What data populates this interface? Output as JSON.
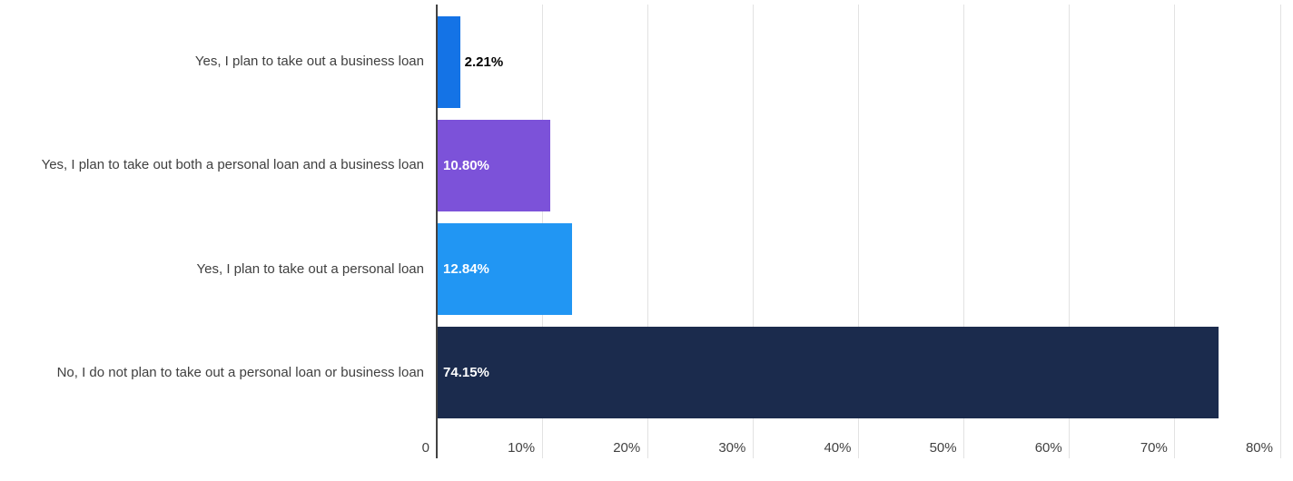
{
  "chart_data": {
    "type": "bar",
    "orientation": "horizontal",
    "title": "",
    "xlabel": "",
    "ylabel": "",
    "categories": [
      "Yes, I plan to take out a business loan",
      "Yes, I plan to take out both a personal loan and a business loan",
      "Yes, I plan to take out a personal loan",
      "No, I do not plan to take out a personal loan or business loan"
    ],
    "values": [
      2.21,
      10.8,
      12.84,
      74.15
    ],
    "value_labels": [
      "2.21%",
      "10.80%",
      "12.84%",
      "74.15%"
    ],
    "bar_colors": [
      "#1473e6",
      "#7c52d9",
      "#2196f3",
      "#1b2b4d"
    ],
    "value_label_colors": [
      "#000000",
      "#ffffff",
      "#ffffff",
      "#ffffff"
    ],
    "value_label_inside": [
      false,
      true,
      true,
      true
    ],
    "xlim": [
      0,
      80
    ],
    "x_ticks": [
      0,
      10,
      20,
      30,
      40,
      50,
      60,
      70,
      80
    ],
    "x_tick_labels": [
      "0",
      "10%",
      "20%",
      "30%",
      "40%",
      "50%",
      "60%",
      "70%",
      "80%"
    ],
    "grid": true,
    "legend": "none"
  },
  "colors": {
    "background": "#ffffff",
    "gridline": "#e2e2e2",
    "axis_line": "#424242",
    "category_label": "#404040",
    "tick_label": "#424242"
  }
}
